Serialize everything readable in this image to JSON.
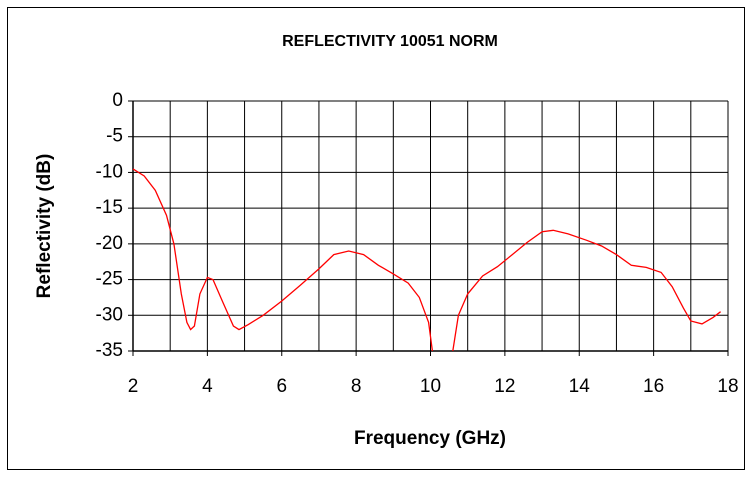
{
  "chart_data": {
    "type": "line",
    "title": "REFLECTIVITY 10051 NORM",
    "xlabel": "Frequency (GHz)",
    "ylabel": "Reflectivity (dB)",
    "xlim": [
      2,
      18
    ],
    "xticks": [
      2,
      4,
      6,
      8,
      10,
      12,
      14,
      16,
      18
    ],
    "xminor": [
      3,
      5,
      7,
      9,
      11,
      13,
      15,
      17
    ],
    "ylim": [
      -35,
      0
    ],
    "yticks": [
      0,
      -5,
      -10,
      -15,
      -20,
      -25,
      -30,
      -35
    ],
    "grid": true,
    "color": "#ff0000",
    "x": [
      2,
      2.3,
      2.6,
      2.9,
      3.1,
      3.3,
      3.45,
      3.55,
      3.65,
      3.8,
      4.0,
      4.15,
      4.4,
      4.7,
      4.85,
      5.1,
      5.5,
      6.0,
      6.5,
      7.0,
      7.4,
      7.8,
      8.2,
      8.6,
      9.0,
      9.4,
      9.7,
      9.95,
      10.05,
      10.3,
      10.6,
      10.75,
      11.0,
      11.4,
      11.8,
      12.2,
      12.6,
      13.0,
      13.3,
      13.7,
      14.2,
      14.6,
      15.0,
      15.4,
      15.8,
      16.2,
      16.5,
      16.8,
      17.0,
      17.3,
      17.6,
      17.8
    ],
    "values": [
      -9.5,
      -10.5,
      -12.5,
      -16,
      -20,
      -27,
      -31,
      -32,
      -31.5,
      -27,
      -24.7,
      -25,
      -28,
      -31.5,
      -32,
      -31.3,
      -30,
      -28,
      -25.8,
      -23.5,
      -21.5,
      -21,
      -21.5,
      -23,
      -24.2,
      -25.5,
      -27.5,
      -31,
      -35,
      null,
      -35,
      -30,
      -27,
      -24.5,
      -23.2,
      -21.5,
      -19.8,
      -18.3,
      -18.1,
      -18.6,
      -19.5,
      -20.3,
      -21.5,
      -23,
      -23.3,
      -24,
      -26,
      -29,
      -30.8,
      -31.2,
      -30.3,
      -29.5
    ]
  }
}
